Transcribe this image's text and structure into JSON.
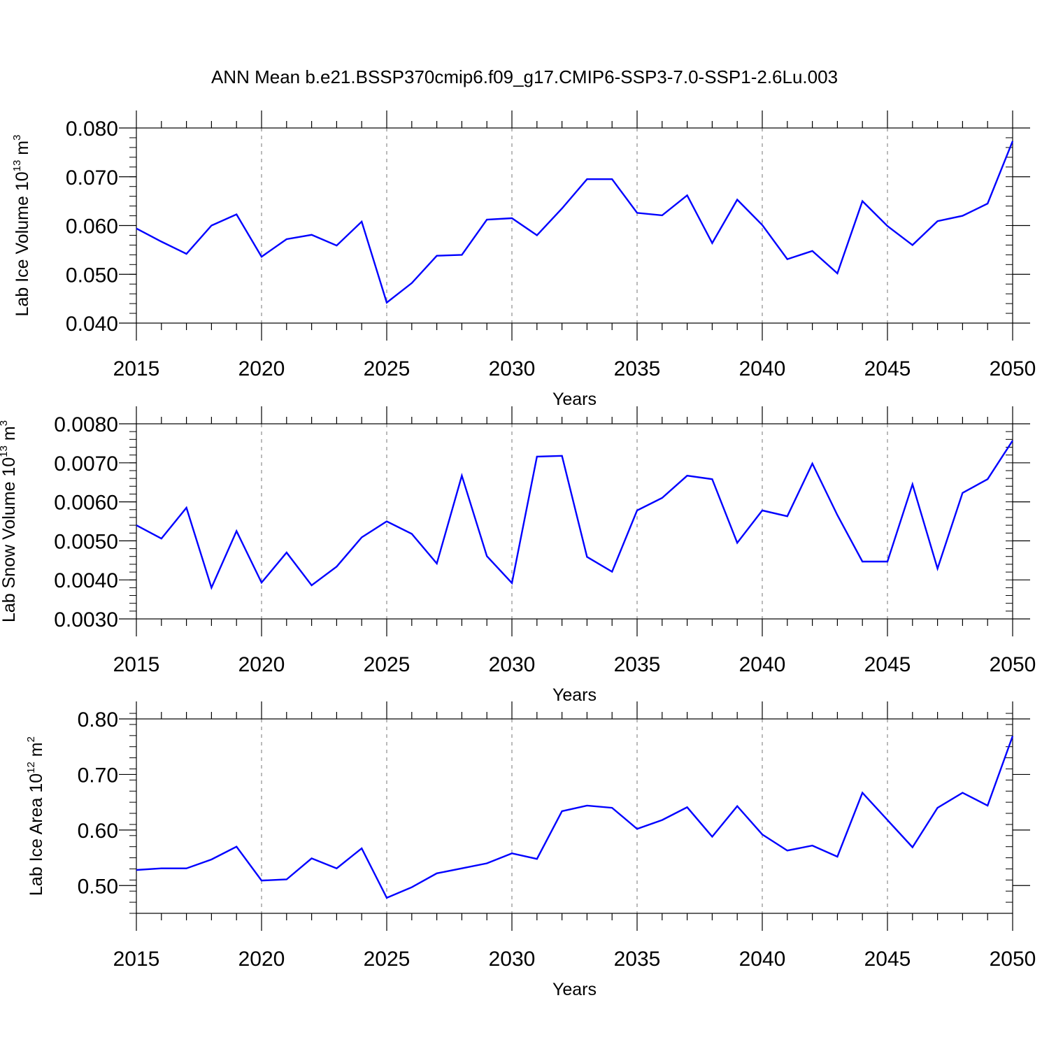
{
  "title": "ANN Mean b.e21.BSSP370cmip6.f09_g17.CMIP6-SSP3-7.0-SSP1-2.6Lu.003",
  "colors": {
    "line": "#0000ff",
    "axis": "#000000",
    "grid": "#8c8c8c"
  },
  "chart_data": [
    {
      "type": "line",
      "xlabel": "Years",
      "ylabel": {
        "text": "Lab Ice Volume 10",
        "exp": "13",
        "unit": " m",
        "unit_exp": "3"
      },
      "xlim": [
        2015,
        2050
      ],
      "ylim": [
        0.04,
        0.08
      ],
      "yticks": [
        "0.040",
        "0.050",
        "0.060",
        "0.070",
        "0.080"
      ],
      "xticks": [
        "2015",
        "2020",
        "2025",
        "2030",
        "2035",
        "2040",
        "2045",
        "2050"
      ],
      "grid": "vertical dashed at major x ticks",
      "x": [
        2015,
        2016,
        2017,
        2018,
        2019,
        2020,
        2021,
        2022,
        2023,
        2024,
        2025,
        2026,
        2027,
        2028,
        2029,
        2030,
        2031,
        2032,
        2033,
        2034,
        2035,
        2036,
        2037,
        2038,
        2039,
        2040,
        2041,
        2042,
        2043,
        2044,
        2045,
        2046,
        2047,
        2048,
        2049,
        2050
      ],
      "values": [
        0.0594,
        0.0567,
        0.0542,
        0.06,
        0.0623,
        0.0536,
        0.0572,
        0.0581,
        0.0559,
        0.0608,
        0.0442,
        0.0482,
        0.0538,
        0.054,
        0.0612,
        0.0615,
        0.058,
        0.0635,
        0.0695,
        0.0695,
        0.0626,
        0.0621,
        0.0662,
        0.0564,
        0.0653,
        0.0601,
        0.0531,
        0.0548,
        0.0502,
        0.065,
        0.0599,
        0.056,
        0.0609,
        0.062,
        0.0645,
        0.0773
      ]
    },
    {
      "type": "line",
      "xlabel": "Years",
      "ylabel": {
        "text": "Lab Snow Volume 10",
        "exp": "13",
        "unit": " m",
        "unit_exp": "3"
      },
      "xlim": [
        2015,
        2050
      ],
      "ylim": [
        0.003,
        0.008
      ],
      "yticks": [
        "0.0030",
        "0.0040",
        "0.0050",
        "0.0060",
        "0.0070",
        "0.0080"
      ],
      "xticks": [
        "2015",
        "2020",
        "2025",
        "2030",
        "2035",
        "2040",
        "2045",
        "2050"
      ],
      "grid": "vertical dashed at major x ticks",
      "x": [
        2015,
        2016,
        2017,
        2018,
        2019,
        2020,
        2021,
        2022,
        2023,
        2024,
        2025,
        2026,
        2027,
        2028,
        2029,
        2030,
        2031,
        2032,
        2033,
        2034,
        2035,
        2036,
        2037,
        2038,
        2039,
        2040,
        2041,
        2042,
        2043,
        2044,
        2045,
        2046,
        2047,
        2048,
        2049,
        2050
      ],
      "values": [
        0.0054,
        0.00506,
        0.00585,
        0.0038,
        0.00525,
        0.00393,
        0.0047,
        0.00386,
        0.00434,
        0.00509,
        0.0055,
        0.00518,
        0.00442,
        0.00667,
        0.00461,
        0.00392,
        0.00716,
        0.00718,
        0.00459,
        0.00421,
        0.00578,
        0.0061,
        0.00667,
        0.00658,
        0.00495,
        0.00578,
        0.00563,
        0.00698,
        0.00566,
        0.00447,
        0.00447,
        0.00645,
        0.00429,
        0.00623,
        0.00658,
        0.00757
      ]
    },
    {
      "type": "line",
      "xlabel": "Years",
      "ylabel": {
        "text": "Lab Ice Area 10",
        "exp": "12",
        "unit": " m",
        "unit_exp": "2"
      },
      "xlim": [
        2015,
        2050
      ],
      "ylim": [
        0.45,
        0.8
      ],
      "yticks": [
        "0.50",
        "0.60",
        "0.70",
        "0.80"
      ],
      "xticks": [
        "2015",
        "2020",
        "2025",
        "2030",
        "2035",
        "2040",
        "2045",
        "2050"
      ],
      "grid": "vertical dashed at major x ticks",
      "x": [
        2015,
        2016,
        2017,
        2018,
        2019,
        2020,
        2021,
        2022,
        2023,
        2024,
        2025,
        2026,
        2027,
        2028,
        2029,
        2030,
        2031,
        2032,
        2033,
        2034,
        2035,
        2036,
        2037,
        2038,
        2039,
        2040,
        2041,
        2042,
        2043,
        2044,
        2045,
        2046,
        2047,
        2048,
        2049,
        2050
      ],
      "values": [
        0.528,
        0.531,
        0.531,
        0.547,
        0.57,
        0.509,
        0.511,
        0.549,
        0.531,
        0.567,
        0.478,
        0.497,
        0.522,
        0.531,
        0.54,
        0.558,
        0.548,
        0.634,
        0.644,
        0.64,
        0.602,
        0.618,
        0.641,
        0.588,
        0.643,
        0.592,
        0.563,
        0.572,
        0.552,
        0.667,
        0.618,
        0.569,
        0.64,
        0.667,
        0.644,
        0.769
      ]
    }
  ]
}
